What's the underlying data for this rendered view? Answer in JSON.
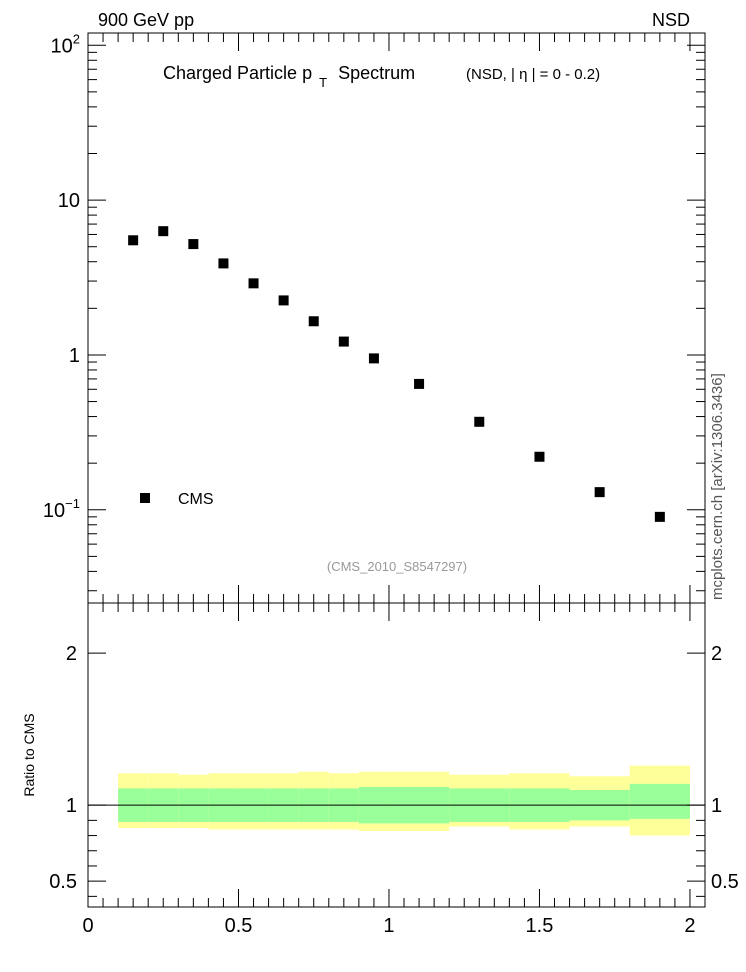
{
  "header": {
    "left_label": "900 GeV pp",
    "right_label": "NSD",
    "side_label": "mcplots.cern.ch [arXiv:1306.3436]"
  },
  "chart_data": [
    {
      "type": "scatter",
      "title": "Charged Particle p",
      "title_subscript": "T",
      "title_suffix": "Spectrum",
      "title_cut_prefix": "(NSD, |",
      "title_cut_symbol": "η",
      "title_cut_suffix": "| =   0 - 0.2)",
      "analysis_id": "(CMS_2010_S8547297)",
      "xlim": [
        0,
        2.05
      ],
      "ylim": [
        0.025,
        120
      ],
      "y_scale": "log",
      "y_tick_labels": [
        {
          "value": 100,
          "base": "10",
          "exp": "2"
        },
        {
          "value": 10,
          "base": "10",
          "exp": ""
        },
        {
          "value": 1,
          "base": "1",
          "exp": ""
        },
        {
          "value": 0.1,
          "base": "10",
          "exp": "−1"
        }
      ],
      "legend_position": "lower-left",
      "series": [
        {
          "name": "CMS",
          "marker": "square",
          "color": "#000000",
          "x": [
            0.15,
            0.25,
            0.35,
            0.45,
            0.55,
            0.65,
            0.75,
            0.85,
            0.95,
            1.1,
            1.3,
            1.5,
            1.7,
            1.9
          ],
          "y": [
            5.5,
            6.3,
            5.2,
            3.9,
            2.9,
            2.25,
            1.65,
            1.22,
            0.95,
            0.65,
            0.37,
            0.22,
            0.13,
            0.09
          ]
        }
      ]
    },
    {
      "type": "area",
      "ylabel": "Ratio to CMS",
      "xlim": [
        0,
        2.05
      ],
      "ylim": [
        0.33,
        2.33
      ],
      "x_tick_labels": [
        "0",
        "0.5",
        "1",
        "1.5",
        "2"
      ],
      "x_ticks": [
        0,
        0.5,
        1,
        1.5,
        2
      ],
      "y_tick_labels": [
        "0.5",
        "1",
        "2"
      ],
      "y_ticks": [
        0.5,
        1,
        2
      ],
      "reference_line": 1,
      "colors": {
        "inner_band": "#99ff99",
        "outer_band": "#ffff99",
        "line": "#000000"
      },
      "bins": [
        {
          "x0": 0.1,
          "x1": 0.2,
          "inner": [
            0.89,
            1.11
          ],
          "outer": [
            0.85,
            1.21
          ]
        },
        {
          "x0": 0.2,
          "x1": 0.3,
          "inner": [
            0.89,
            1.11
          ],
          "outer": [
            0.85,
            1.21
          ]
        },
        {
          "x0": 0.3,
          "x1": 0.4,
          "inner": [
            0.89,
            1.11
          ],
          "outer": [
            0.85,
            1.2
          ]
        },
        {
          "x0": 0.4,
          "x1": 0.5,
          "inner": [
            0.89,
            1.11
          ],
          "outer": [
            0.84,
            1.21
          ]
        },
        {
          "x0": 0.5,
          "x1": 0.6,
          "inner": [
            0.89,
            1.11
          ],
          "outer": [
            0.84,
            1.21
          ]
        },
        {
          "x0": 0.6,
          "x1": 0.7,
          "inner": [
            0.89,
            1.11
          ],
          "outer": [
            0.84,
            1.21
          ]
        },
        {
          "x0": 0.7,
          "x1": 0.8,
          "inner": [
            0.89,
            1.11
          ],
          "outer": [
            0.84,
            1.22
          ]
        },
        {
          "x0": 0.8,
          "x1": 0.9,
          "inner": [
            0.89,
            1.11
          ],
          "outer": [
            0.84,
            1.21
          ]
        },
        {
          "x0": 0.9,
          "x1": 1.0,
          "inner": [
            0.88,
            1.12
          ],
          "outer": [
            0.83,
            1.22
          ]
        },
        {
          "x0": 1.0,
          "x1": 1.2,
          "inner": [
            0.88,
            1.12
          ],
          "outer": [
            0.83,
            1.22
          ]
        },
        {
          "x0": 1.2,
          "x1": 1.4,
          "inner": [
            0.89,
            1.11
          ],
          "outer": [
            0.86,
            1.2
          ]
        },
        {
          "x0": 1.4,
          "x1": 1.6,
          "inner": [
            0.89,
            1.11
          ],
          "outer": [
            0.84,
            1.21
          ]
        },
        {
          "x0": 1.6,
          "x1": 1.8,
          "inner": [
            0.9,
            1.1
          ],
          "outer": [
            0.86,
            1.19
          ]
        },
        {
          "x0": 1.8,
          "x1": 2.0,
          "inner": [
            0.91,
            1.14
          ],
          "outer": [
            0.8,
            1.26
          ]
        }
      ]
    }
  ]
}
